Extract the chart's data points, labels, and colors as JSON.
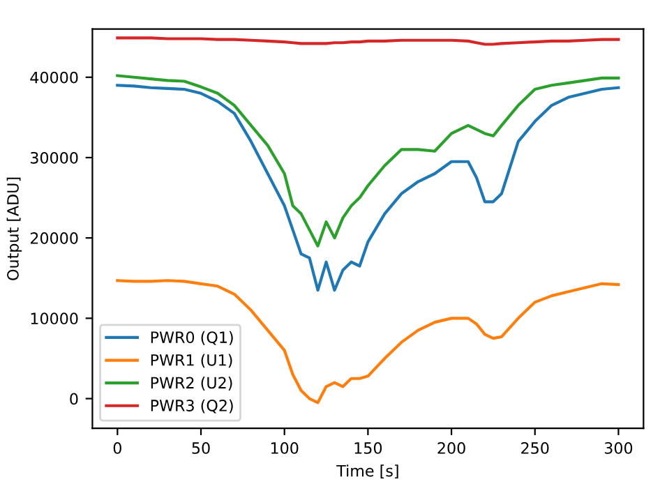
{
  "chart_data": {
    "type": "line",
    "xlabel": "Time [s]",
    "ylabel": "Output [ADU]",
    "x": [
      0,
      10,
      20,
      30,
      40,
      50,
      60,
      70,
      80,
      90,
      100,
      105,
      110,
      115,
      120,
      125,
      130,
      135,
      140,
      145,
      150,
      160,
      170,
      180,
      190,
      200,
      210,
      215,
      220,
      225,
      230,
      240,
      250,
      260,
      270,
      280,
      290,
      300
    ],
    "series": [
      {
        "name": "PWR0 (Q1)",
        "color": "#1f77b4",
        "values": [
          39000,
          38900,
          38700,
          38600,
          38500,
          38000,
          37000,
          35500,
          32000,
          28000,
          24000,
          21000,
          18000,
          17500,
          13500,
          17000,
          13500,
          16000,
          17000,
          16500,
          19500,
          23000,
          25500,
          27000,
          28000,
          29500,
          29500,
          27500,
          24500,
          24500,
          25500,
          32000,
          34500,
          36500,
          37500,
          38000,
          38500,
          38700
        ]
      },
      {
        "name": "PWR1 (U1)",
        "color": "#ff7f0e",
        "values": [
          14700,
          14600,
          14600,
          14700,
          14600,
          14300,
          14000,
          13000,
          11000,
          8500,
          6000,
          3000,
          1000,
          0,
          -500,
          1500,
          2000,
          1500,
          2500,
          2500,
          2800,
          5000,
          7000,
          8500,
          9500,
          10000,
          10000,
          9300,
          8000,
          7500,
          7700,
          10000,
          12000,
          12800,
          13300,
          13800,
          14300,
          14200
        ]
      },
      {
        "name": "PWR2 (U2)",
        "color": "#2ca02c",
        "values": [
          40200,
          40000,
          39800,
          39600,
          39500,
          38800,
          38000,
          36500,
          34000,
          31500,
          28000,
          24000,
          23000,
          21000,
          19000,
          22000,
          20000,
          22500,
          24000,
          25000,
          26500,
          29000,
          31000,
          31000,
          30800,
          33000,
          34000,
          33500,
          33000,
          32700,
          34000,
          36500,
          38500,
          39000,
          39300,
          39600,
          39900,
          39900
        ]
      },
      {
        "name": "PWR3 (Q2)",
        "color": "#d62728",
        "values": [
          44900,
          44900,
          44900,
          44800,
          44800,
          44800,
          44700,
          44700,
          44600,
          44500,
          44400,
          44300,
          44200,
          44200,
          44200,
          44200,
          44300,
          44300,
          44400,
          44400,
          44500,
          44500,
          44600,
          44600,
          44600,
          44600,
          44500,
          44300,
          44100,
          44100,
          44200,
          44300,
          44400,
          44500,
          44500,
          44600,
          44700,
          44700
        ]
      }
    ],
    "xlim": [
      -15,
      315
    ],
    "xticks": [
      0,
      50,
      100,
      150,
      200,
      250,
      300
    ],
    "ylim": [
      -3700,
      46000
    ],
    "yticks": [
      0,
      10000,
      20000,
      30000,
      40000
    ],
    "grid": false,
    "legend": "bottom left",
    "line_style": "solid",
    "marker": "none"
  }
}
